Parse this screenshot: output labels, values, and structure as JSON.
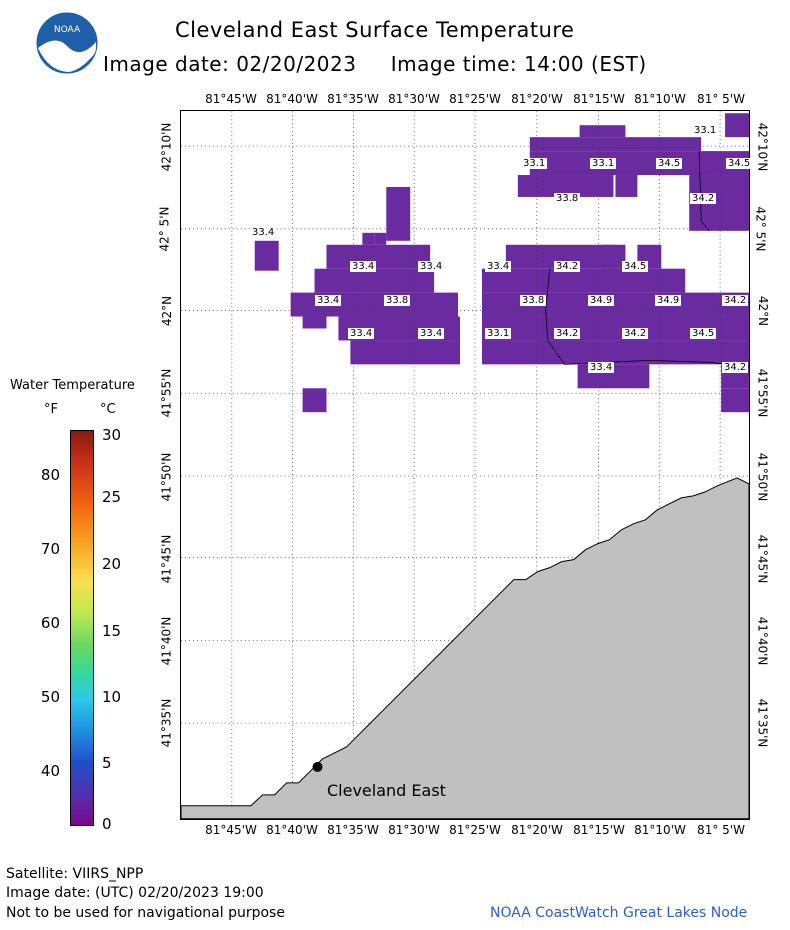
{
  "header": {
    "title": "Cleveland East Surface Temperature",
    "subtitle": "Image date: 02/20/2023     Image time: 14:00 (EST)",
    "logo_text": "NOAA"
  },
  "map": {
    "lon_labels": [
      "81°45'W",
      "81°40'W",
      "81°35'W",
      "81°30'W",
      "81°25'W",
      "81°20'W",
      "81°15'W",
      "81°10'W",
      "81° 5'W"
    ],
    "lat_labels": [
      "42°10'N",
      "42° 5'N",
      "42°N",
      "41°55'N",
      "41°50'N",
      "41°45'N",
      "41°40'N",
      "41°35'N"
    ],
    "station_label": "Cleveland East",
    "temp_labels": [
      "33.1",
      "33.1",
      "33.1",
      "34.5",
      "34.5",
      "33.8",
      "34.2",
      "33.4",
      "33.4",
      "33.4",
      "33.4",
      "34.2",
      "34.5",
      "33.4",
      "33.8",
      "33.8",
      "34.9",
      "34.9",
      "34.2",
      "33.4",
      "33.4",
      "33.1",
      "34.2",
      "34.2",
      "34.5",
      "33.4",
      "34.2"
    ],
    "water_color": "#6a2aa0",
    "land_color": "#c0c0c0"
  },
  "legend": {
    "title": "Water Temperature",
    "unit_f": "°F",
    "unit_c": "°C",
    "ticks_f": [
      "80",
      "70",
      "60",
      "50",
      "40"
    ],
    "ticks_c": [
      "30",
      "25",
      "20",
      "15",
      "10",
      "5",
      "0"
    ]
  },
  "footer": {
    "satellite": "Satellite: VIIRS_NPP",
    "utc_date": "Image date: (UTC) 02/20/2023  19:00",
    "disclaimer": "Not to be used for navigational purpose",
    "credit": "NOAA CoastWatch Great Lakes Node"
  }
}
